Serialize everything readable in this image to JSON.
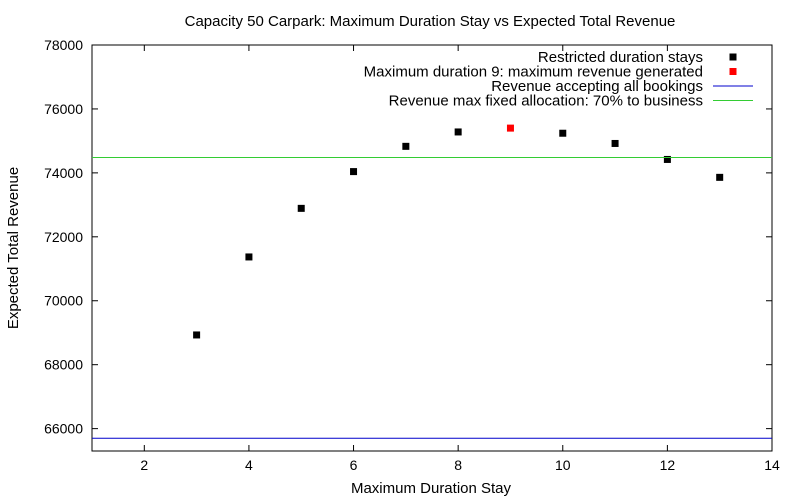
{
  "chart_data": {
    "type": "scatter",
    "title": "Capacity 50 Carpark: Maximum Duration Stay vs Expected Total Revenue",
    "xlabel": "Maximum Duration Stay",
    "ylabel": "Expected Total Revenue",
    "xlim": [
      1,
      14
    ],
    "ylim": [
      65300,
      78000
    ],
    "xticks": [
      2,
      4,
      6,
      8,
      10,
      12,
      14
    ],
    "yticks": [
      66000,
      68000,
      70000,
      72000,
      74000,
      76000,
      78000
    ],
    "legend_position": "top-right",
    "grid": false,
    "series": [
      {
        "name": "Restricted duration stays",
        "kind": "points",
        "color": "#000000",
        "x": [
          3,
          4,
          5,
          6,
          7,
          8,
          10,
          11,
          12,
          13
        ],
        "y": [
          68930,
          71370,
          72890,
          74040,
          74830,
          75280,
          75240,
          74920,
          74420,
          73860
        ]
      },
      {
        "name": "Maximum duration 9: maximum revenue generated",
        "kind": "points",
        "color": "#ff0000",
        "x": [
          9
        ],
        "y": [
          75400
        ]
      },
      {
        "name": "Revenue accepting all bookings",
        "kind": "hline",
        "color": "#0000cc",
        "y": 65700
      },
      {
        "name": "Revenue max fixed allocation: 70% to business",
        "kind": "hline",
        "color": "#33cc33",
        "y": 74480
      }
    ]
  }
}
